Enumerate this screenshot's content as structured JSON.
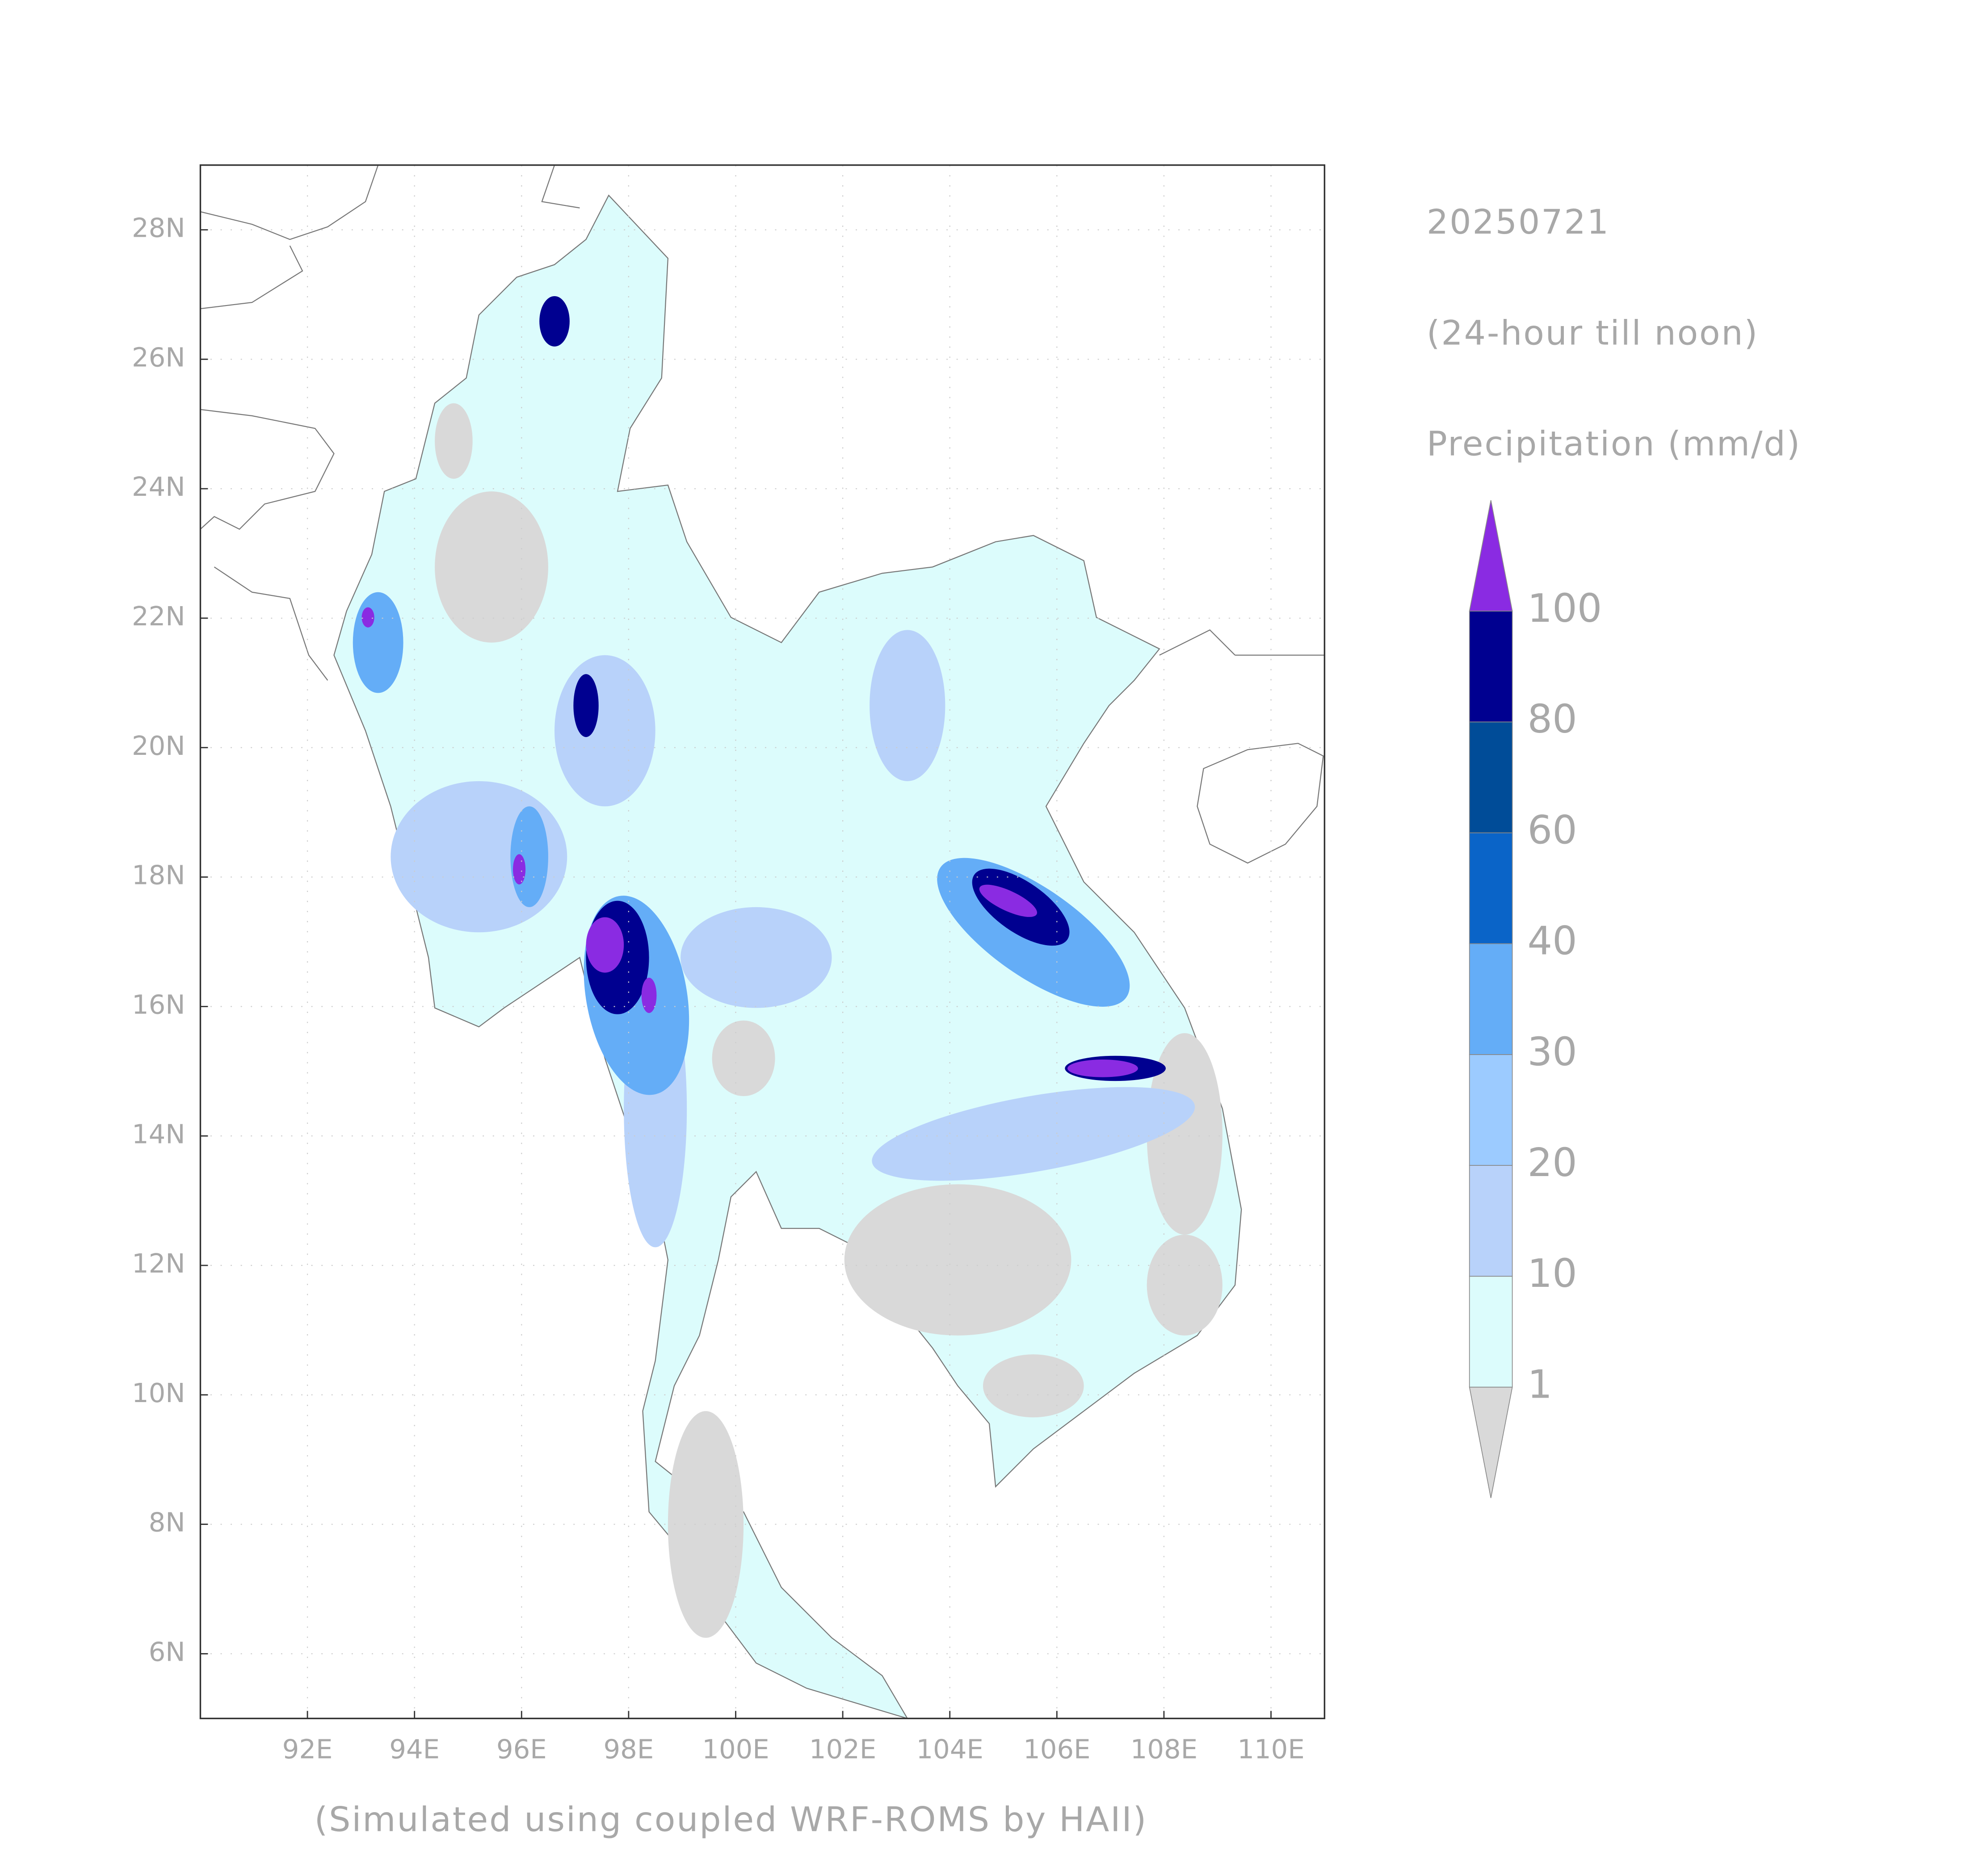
{
  "map": {
    "type": "precipitation-map",
    "date": "20250721",
    "period": "(24-hour till noon)",
    "variable": "Precipitation (mm/d)",
    "footer": "(Simulated using coupled WRF-ROMS by HAII)",
    "xlim": [
      90,
      111
    ],
    "ylim": [
      5,
      29
    ],
    "xticks": [
      {
        "value": 92,
        "label": "92E"
      },
      {
        "value": 94,
        "label": "94E"
      },
      {
        "value": 96,
        "label": "96E"
      },
      {
        "value": 98,
        "label": "98E"
      },
      {
        "value": 100,
        "label": "100E"
      },
      {
        "value": 102,
        "label": "102E"
      },
      {
        "value": 104,
        "label": "104E"
      },
      {
        "value": 106,
        "label": "106E"
      },
      {
        "value": 108,
        "label": "108E"
      },
      {
        "value": 110,
        "label": "110E"
      }
    ],
    "yticks": [
      {
        "value": 6,
        "label": "6N"
      },
      {
        "value": 8,
        "label": "8N"
      },
      {
        "value": 10,
        "label": "10N"
      },
      {
        "value": 12,
        "label": "12N"
      },
      {
        "value": 14,
        "label": "14N"
      },
      {
        "value": 16,
        "label": "16N"
      },
      {
        "value": 18,
        "label": "18N"
      },
      {
        "value": 20,
        "label": "20N"
      },
      {
        "value": 22,
        "label": "22N"
      },
      {
        "value": 24,
        "label": "24N"
      },
      {
        "value": 26,
        "label": "26N"
      },
      {
        "value": 28,
        "label": "28N"
      }
    ],
    "grid": true,
    "legend": {
      "levels": [
        1,
        10,
        20,
        30,
        40,
        60,
        80,
        100
      ],
      "colors": [
        "#d9d9d9",
        "#dcfcfc",
        "#b8d2fa",
        "#9ccbff",
        "#64adf7",
        "#0a64c8",
        "#004c98",
        "#000090",
        "#8a2be2"
      ]
    }
  }
}
